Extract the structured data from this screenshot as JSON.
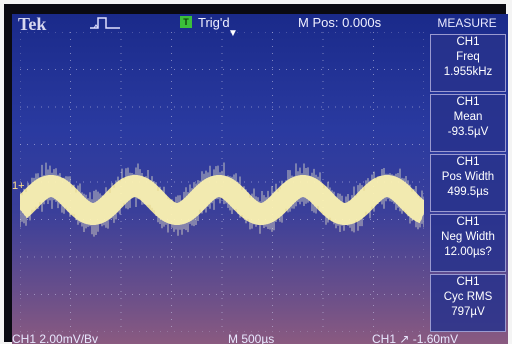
{
  "brand": "Tek",
  "header": {
    "trigger_badge": "T",
    "trigger_status": "Trig'd",
    "mpos": "M Pos: 0.000s"
  },
  "channel_marker": "1+",
  "measure": {
    "title": "MEASURE",
    "items": [
      {
        "channel": "CH1",
        "name": "Freq",
        "value": "1.955kHz"
      },
      {
        "channel": "CH1",
        "name": "Mean",
        "value": "-93.5µV"
      },
      {
        "channel": "CH1",
        "name": "Pos Width",
        "value": "499.5µs"
      },
      {
        "channel": "CH1",
        "name": "Neg Width",
        "value": "12.00µs?"
      },
      {
        "channel": "CH1",
        "name": "Cyc RMS",
        "value": "797µV"
      }
    ]
  },
  "footer": {
    "ch_scale": "CH1 2.00mV/Bv",
    "time_scale": "M 500µs",
    "trigger": "CH1 ↗ -1.60mV"
  },
  "colors": {
    "trace": "#fff2a0",
    "grid": "#c8c8e8",
    "trigger_badge": "#3bbf3b"
  }
}
